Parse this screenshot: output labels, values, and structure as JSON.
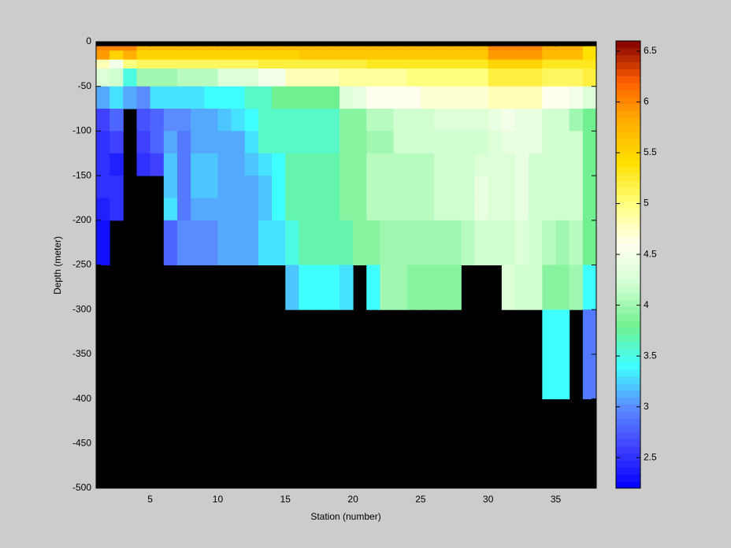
{
  "chart_data": {
    "type": "heatmap",
    "xlabel": "Station (number)",
    "ylabel": "Depth (meter)",
    "x": [
      1,
      2,
      3,
      4,
      5,
      6,
      7,
      8,
      9,
      10,
      11,
      12,
      13,
      14,
      15,
      16,
      17,
      18,
      19,
      20,
      21,
      22,
      23,
      24,
      25,
      26,
      27,
      28,
      29,
      30,
      31,
      32,
      33,
      34,
      35,
      36,
      37,
      38
    ],
    "y": [
      0,
      -5,
      -10,
      -20,
      -30,
      -50,
      -75,
      -100,
      -125,
      -150,
      -175,
      -200,
      -250,
      -300,
      -400,
      -500
    ],
    "z": [
      [
        null,
        null,
        null,
        null,
        null,
        null,
        null,
        null,
        null,
        null,
        null,
        null,
        null,
        null,
        null,
        null,
        null,
        null,
        null,
        null,
        null,
        null,
        null,
        null,
        null,
        null,
        null,
        null,
        null,
        null,
        null,
        null,
        null,
        null,
        null,
        null,
        null
      ],
      [
        6.0,
        6.0,
        6.0,
        5.7,
        5.7,
        5.7,
        5.7,
        5.7,
        5.7,
        5.7,
        5.7,
        5.7,
        5.7,
        5.7,
        5.7,
        5.7,
        5.7,
        5.7,
        5.7,
        5.7,
        5.7,
        5.7,
        5.7,
        5.7,
        5.7,
        5.7,
        5.7,
        5.7,
        5.7,
        6.0,
        6.0,
        6.0,
        6.0,
        5.8,
        5.8,
        5.8,
        5.4
      ],
      [
        5.9,
        5.5,
        5.8,
        5.5,
        5.5,
        5.5,
        5.5,
        5.5,
        5.5,
        5.5,
        5.5,
        5.5,
        5.5,
        5.5,
        5.5,
        5.6,
        5.6,
        5.6,
        5.6,
        5.6,
        5.6,
        5.6,
        5.6,
        5.6,
        5.6,
        5.6,
        5.6,
        5.6,
        5.6,
        5.9,
        5.9,
        5.9,
        5.9,
        5.7,
        5.7,
        5.7,
        5.4
      ],
      [
        4.8,
        4.5,
        5.0,
        5.1,
        5.1,
        5.1,
        5.1,
        5.1,
        5.1,
        5.1,
        5.1,
        5.1,
        5.2,
        5.2,
        5.2,
        5.2,
        5.2,
        5.2,
        5.2,
        5.2,
        5.3,
        5.3,
        5.3,
        5.3,
        5.3,
        5.3,
        5.3,
        5.3,
        5.3,
        5.5,
        5.5,
        5.5,
        5.5,
        5.3,
        5.3,
        5.3,
        5.3
      ],
      [
        4.3,
        4.2,
        3.5,
        4.0,
        4.0,
        4.0,
        4.1,
        4.1,
        4.1,
        4.3,
        4.3,
        4.3,
        4.5,
        4.5,
        4.8,
        4.8,
        4.8,
        4.8,
        4.9,
        4.9,
        4.9,
        4.9,
        4.9,
        5.0,
        5.0,
        5.0,
        5.0,
        5.0,
        5.0,
        5.2,
        5.2,
        5.2,
        5.2,
        5.1,
        5.1,
        5.1,
        5.2
      ],
      [
        3.1,
        3.3,
        3.1,
        3.0,
        3.3,
        3.3,
        3.3,
        3.3,
        3.4,
        3.4,
        3.4,
        3.6,
        3.6,
        3.8,
        3.8,
        3.8,
        3.8,
        3.8,
        4.3,
        4.4,
        4.6,
        4.6,
        4.6,
        4.6,
        4.7,
        4.7,
        4.7,
        4.7,
        4.7,
        4.8,
        4.8,
        4.8,
        4.8,
        4.6,
        4.6,
        4.5,
        4.3
      ],
      [
        2.6,
        2.8,
        null,
        2.7,
        2.8,
        3.0,
        3.0,
        3.1,
        3.1,
        3.2,
        3.3,
        3.4,
        3.6,
        3.6,
        3.6,
        3.6,
        3.6,
        3.6,
        3.9,
        3.9,
        4.1,
        4.1,
        4.2,
        4.2,
        4.2,
        4.3,
        4.3,
        4.3,
        4.3,
        4.4,
        4.5,
        4.4,
        4.4,
        4.2,
        4.2,
        4.0,
        3.8
      ],
      [
        2.5,
        2.6,
        null,
        2.6,
        2.8,
        3.1,
        2.9,
        3.1,
        3.1,
        3.1,
        3.1,
        3.3,
        3.6,
        3.6,
        3.6,
        3.6,
        3.6,
        3.6,
        3.9,
        3.9,
        4.0,
        4.0,
        4.2,
        4.2,
        4.2,
        4.2,
        4.2,
        4.2,
        4.2,
        4.3,
        4.4,
        4.4,
        4.4,
        4.2,
        4.2,
        4.2,
        3.8
      ],
      [
        2.5,
        2.4,
        null,
        2.5,
        2.6,
        3.2,
        2.9,
        3.2,
        3.2,
        3.1,
        3.1,
        3.2,
        3.3,
        3.4,
        3.7,
        3.7,
        3.7,
        3.7,
        3.9,
        3.9,
        4.1,
        4.1,
        4.1,
        4.1,
        4.1,
        4.2,
        4.2,
        4.2,
        4.3,
        4.3,
        4.3,
        4.4,
        4.2,
        4.2,
        4.2,
        4.2,
        3.8
      ],
      [
        2.5,
        2.5,
        null,
        null,
        null,
        3.2,
        2.9,
        3.2,
        3.2,
        3.1,
        3.1,
        3.1,
        3.2,
        3.4,
        3.7,
        3.7,
        3.7,
        3.7,
        3.9,
        3.9,
        4.1,
        4.1,
        4.1,
        4.1,
        4.1,
        4.2,
        4.2,
        4.2,
        4.4,
        4.3,
        4.3,
        4.4,
        4.2,
        4.2,
        4.2,
        4.2,
        3.8
      ],
      [
        2.4,
        2.5,
        null,
        null,
        null,
        3.3,
        2.9,
        3.1,
        3.1,
        3.1,
        3.1,
        3.1,
        3.2,
        3.4,
        3.7,
        3.7,
        3.7,
        3.7,
        3.9,
        3.9,
        4.1,
        4.1,
        4.1,
        4.1,
        4.1,
        4.2,
        4.2,
        4.2,
        4.4,
        4.3,
        4.3,
        4.4,
        4.2,
        4.2,
        4.2,
        4.2,
        3.8
      ],
      [
        2.3,
        null,
        null,
        null,
        null,
        2.8,
        3.0,
        3.0,
        3.0,
        3.1,
        3.1,
        3.1,
        3.3,
        3.3,
        3.5,
        3.7,
        3.7,
        3.7,
        3.7,
        3.9,
        3.9,
        4.0,
        4.0,
        4.0,
        4.0,
        4.0,
        4.0,
        4.1,
        4.2,
        4.2,
        4.2,
        4.3,
        4.2,
        4.1,
        4.0,
        4.1,
        3.8
      ],
      [
        null,
        null,
        null,
        null,
        null,
        null,
        null,
        null,
        null,
        null,
        null,
        null,
        null,
        null,
        3.2,
        3.4,
        3.4,
        3.4,
        3.3,
        null,
        3.4,
        4.0,
        4.0,
        3.9,
        3.9,
        3.9,
        3.9,
        null,
        null,
        null,
        4.3,
        4.2,
        4.2,
        3.9,
        3.9,
        4.0,
        3.4
      ],
      [
        null,
        null,
        null,
        null,
        null,
        null,
        null,
        null,
        null,
        null,
        null,
        null,
        null,
        null,
        null,
        null,
        null,
        null,
        null,
        null,
        null,
        null,
        null,
        null,
        null,
        null,
        null,
        null,
        null,
        null,
        null,
        null,
        null,
        3.4,
        3.4,
        null,
        2.9
      ],
      [
        null,
        null,
        null,
        null,
        null,
        null,
        null,
        null,
        null,
        null,
        null,
        null,
        null,
        null,
        null,
        null,
        null,
        null,
        null,
        null,
        null,
        null,
        null,
        null,
        null,
        null,
        null,
        null,
        null,
        null,
        null,
        null,
        null,
        null,
        null,
        null,
        null
      ]
    ],
    "xlim": [
      1,
      38
    ],
    "ylim": [
      -500,
      0
    ],
    "xticks": [
      5,
      10,
      15,
      20,
      25,
      30,
      35
    ],
    "yticks": [
      -500,
      -450,
      -400,
      -350,
      -300,
      -250,
      -200,
      -150,
      -100,
      -50,
      0
    ],
    "missing_color": "#000000",
    "colorbar": {
      "clim": [
        2.2,
        6.6
      ],
      "ticks": [
        2.5,
        3,
        3.5,
        4,
        4.5,
        5,
        5.5,
        6,
        6.5
      ],
      "colormap": [
        "#0000ff",
        "#4040ff",
        "#5a8cff",
        "#40ffff",
        "#70f090",
        "#d0ffd0",
        "#fffff0",
        "#ffff80",
        "#ffe000",
        "#ffb000",
        "#ff6000",
        "#800000"
      ]
    }
  }
}
